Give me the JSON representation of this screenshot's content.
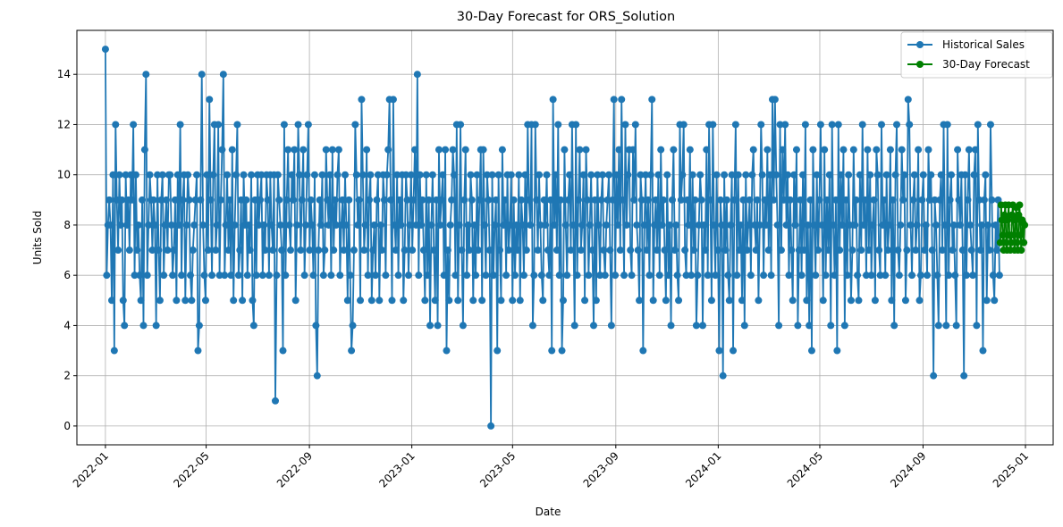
{
  "chart_data": {
    "type": "line",
    "title": "30-Day Forecast for ORS_Solution",
    "xlabel": "Date",
    "ylabel": "Units Sold",
    "x_range": [
      "2021-11-28",
      "2025-02-03"
    ],
    "ylim": [
      -0.75,
      15.75
    ],
    "x_ticks": [
      "2022-01",
      "2022-05",
      "2022-09",
      "2023-01",
      "2023-05",
      "2023-09",
      "2024-01",
      "2024-05",
      "2024-09",
      "2025-01"
    ],
    "y_ticks": [
      0,
      2,
      4,
      6,
      8,
      10,
      12,
      14
    ],
    "grid": true,
    "legend": "top-right",
    "series": [
      {
        "name": "Historical Sales",
        "color": "#1f77b4",
        "start_date": "2022-01-01",
        "end_date": "2024-12-01",
        "values": [
          15,
          6,
          8,
          9,
          8,
          5,
          10,
          3,
          12,
          9,
          7,
          10,
          8,
          9,
          5,
          4,
          10,
          8,
          9,
          7,
          10,
          9,
          12,
          6,
          10,
          7,
          8,
          6,
          5,
          9,
          4,
          11,
          14,
          6,
          8,
          10,
          9,
          7,
          9,
          8,
          4,
          10,
          7,
          5,
          9,
          10,
          6,
          8,
          9,
          7,
          10,
          10,
          8,
          6,
          7,
          9,
          5,
          10,
          8,
          12,
          6,
          9,
          10,
          5,
          8,
          10,
          9,
          6,
          5,
          7,
          8,
          9,
          10,
          3,
          4,
          9,
          14,
          8,
          6,
          5,
          10,
          7,
          13,
          9,
          6,
          10,
          12,
          7,
          8,
          12,
          6,
          9,
          11,
          14,
          6,
          8,
          10,
          7,
          9,
          6,
          11,
          5,
          8,
          10,
          12,
          6,
          7,
          9,
          5,
          10,
          8,
          9,
          6,
          8,
          7,
          10,
          5,
          4,
          9,
          6,
          10,
          8,
          9,
          10,
          6,
          8,
          7,
          10,
          9,
          6,
          10,
          8,
          7,
          10,
          1,
          6,
          10,
          9,
          8,
          7,
          3,
          12,
          6,
          9,
          11,
          8,
          7,
          10,
          9,
          11,
          5,
          8,
          12,
          10,
          7,
          9,
          11,
          6,
          8,
          10,
          12,
          7,
          9,
          8,
          6,
          10,
          4,
          2,
          7,
          9,
          8,
          10,
          6,
          7,
          11,
          9,
          8,
          10,
          6,
          11,
          7,
          9,
          8,
          10,
          11,
          6,
          8,
          9,
          7,
          10,
          8,
          5,
          9,
          6,
          3,
          4,
          7,
          12,
          10,
          8,
          9,
          5,
          13,
          10,
          7,
          8,
          11,
          6,
          9,
          10,
          5,
          7,
          8,
          6,
          9,
          10,
          5,
          8,
          7,
          10,
          9,
          6,
          10,
          11,
          13,
          9,
          5,
          13,
          8,
          7,
          10,
          6,
          9,
          8,
          10,
          5,
          7,
          10,
          9,
          6,
          8,
          10,
          7,
          9,
          11,
          8,
          14,
          6,
          10,
          8,
          9,
          7,
          5,
          10,
          6,
          9,
          4,
          8,
          10,
          7,
          5,
          9,
          4,
          11,
          8,
          9,
          10,
          6,
          11,
          3,
          7,
          5,
          8,
          9,
          11,
          10,
          6,
          12,
          5,
          8,
          12,
          7,
          4,
          9,
          11,
          6,
          8,
          7,
          10,
          9,
          5,
          8,
          6,
          10,
          7,
          9,
          11,
          5,
          11,
          8,
          6,
          10,
          9,
          7,
          0,
          10,
          6,
          8,
          9,
          3,
          10,
          7,
          5,
          11,
          8,
          9,
          6,
          10,
          7,
          8,
          10,
          5,
          9,
          6,
          8,
          7,
          10,
          5,
          9,
          8,
          6,
          10,
          7,
          12,
          9,
          8,
          12,
          4,
          6,
          12,
          9,
          7,
          10,
          8,
          6,
          5,
          9,
          8,
          10,
          7,
          6,
          9,
          3,
          13,
          8,
          10,
          7,
          12,
          6,
          9,
          3,
          5,
          11,
          8,
          6,
          9,
          10,
          7,
          12,
          8,
          4,
          12,
          6,
          9,
          11,
          7,
          8,
          10,
          5,
          11,
          9,
          6,
          8,
          10,
          7,
          4,
          9,
          5,
          10,
          8,
          6,
          9,
          10,
          7,
          6,
          8,
          9,
          10,
          7,
          4,
          9,
          13,
          6,
          10,
          8,
          11,
          7,
          13,
          9,
          6,
          12,
          8,
          10,
          11,
          7,
          6,
          11,
          9,
          12,
          8,
          7,
          5,
          10,
          9,
          3,
          8,
          10,
          7,
          9,
          6,
          10,
          13,
          5,
          8,
          9,
          7,
          10,
          6,
          11,
          8,
          9,
          7,
          5,
          10,
          6,
          8,
          4,
          9,
          11,
          7,
          8,
          6,
          5,
          12,
          9,
          10,
          12,
          7,
          6,
          9,
          8,
          11,
          6,
          10,
          7,
          9,
          4,
          6,
          8,
          10,
          9,
          4,
          8,
          7,
          11,
          6,
          12,
          9,
          5,
          12,
          8,
          6,
          10,
          7,
          3,
          9,
          8,
          2,
          10,
          7,
          9,
          6,
          5,
          8,
          10,
          3,
          9,
          12,
          6,
          10,
          7,
          8,
          5,
          9,
          4,
          10,
          7,
          8,
          9,
          6,
          10,
          11,
          8,
          7,
          9,
          5,
          8,
          12,
          10,
          6,
          9,
          8,
          11,
          7,
          10,
          6,
          13,
          9,
          13,
          10,
          8,
          4,
          12,
          7,
          11,
          9,
          12,
          8,
          10,
          6,
          9,
          7,
          5,
          10,
          8,
          11,
          4,
          7,
          9,
          6,
          10,
          7,
          12,
          5,
          8,
          4,
          9,
          3,
          11,
          8,
          6,
          10,
          7,
          9,
          12,
          8,
          5,
          11,
          6,
          9,
          7,
          10,
          4,
          12,
          8,
          6,
          9,
          3,
          12,
          7,
          10,
          8,
          11,
          4,
          9,
          6,
          10,
          8,
          5,
          7,
          11,
          8,
          9,
          6,
          5,
          10,
          7,
          12,
          8,
          9,
          6,
          11,
          7,
          10,
          6,
          8,
          9,
          5,
          11,
          10,
          7,
          6,
          12,
          8,
          9,
          6,
          10,
          7,
          8,
          11,
          5,
          9,
          4,
          10,
          12,
          7,
          6,
          8,
          11,
          9,
          10,
          5,
          7,
          13,
          12,
          8,
          6,
          9,
          10,
          7,
          8,
          11,
          5,
          6,
          9,
          10,
          7,
          8,
          6,
          11,
          9,
          10,
          7,
          2,
          9,
          8,
          6,
          4,
          9,
          10,
          7,
          12,
          8,
          4,
          12,
          6,
          9,
          10,
          7,
          8,
          6,
          4,
          11,
          9,
          8,
          10,
          7,
          2,
          10,
          6,
          9,
          11,
          8,
          7,
          6,
          10,
          11,
          4,
          12,
          9,
          7,
          8,
          3,
          9,
          10,
          5,
          8,
          7,
          12,
          9,
          6,
          5,
          8,
          7,
          9,
          6
        ]
      },
      {
        "name": "30-Day Forecast",
        "color": "#008000",
        "start_date": "2024-12-02",
        "values": [
          7.3,
          8.8,
          8.2,
          7.6,
          7.0,
          8.4,
          8.8,
          7.3,
          7.0,
          8.2,
          8.8,
          7.6,
          7.0,
          7.3,
          8.4,
          8.8,
          7.6,
          7.0,
          8.2,
          8.7,
          7.3,
          7.0,
          8.4,
          8.8,
          7.6,
          7.0,
          8.2,
          8.1,
          7.3,
          8.0
        ]
      }
    ]
  }
}
